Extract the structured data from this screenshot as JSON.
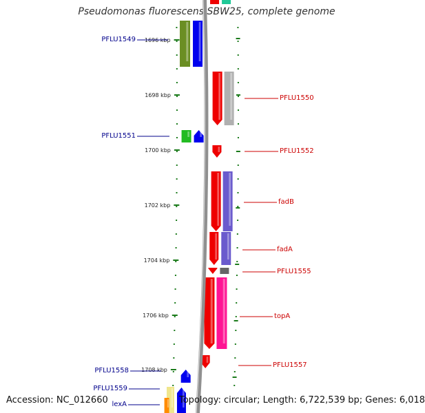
{
  "title": "Pseudomonas fluorescens SBW25, complete genome",
  "footer": {
    "accession": "Accession: NC_012660",
    "summary": "Topology: circular; Length: 6,722,539 bp; Genes: 6,018"
  },
  "ruler": {
    "unit": "kbp",
    "ticks": [
      {
        "kbp": 1696,
        "label": "1696 kbp"
      },
      {
        "kbp": 1698,
        "label": "1698 kbp"
      },
      {
        "kbp": 1700,
        "label": "1700 kbp"
      },
      {
        "kbp": 1702,
        "label": "1702 kbp"
      },
      {
        "kbp": 1704,
        "label": "1704 kbp"
      },
      {
        "kbp": 1706,
        "label": "1706 kbp"
      },
      {
        "kbp": 1708,
        "label": "1708 kbp"
      }
    ]
  },
  "colors": {
    "label_blue": "#00008b",
    "label_red": "#cc0000",
    "backbone": "#808080",
    "tick_green": "#1a7a1a",
    "gene_red": "#ee0000",
    "gene_blue": "#0000ee",
    "gene_olive": "#6b8e23",
    "gene_green": "#22bb22",
    "gene_gray": "#b0b0b0",
    "gene_dark_gray": "#666666",
    "gene_slate": "#6a5acd",
    "gene_pink": "#ff1493",
    "gene_teal": "#20c997",
    "gene_orange": "#ff8c00",
    "gene_cream": "#f0e68c"
  },
  "genes": [
    {
      "name": "PFLU1549",
      "strand": "-",
      "color": "gene_blue"
    },
    {
      "name": "PFLU1550",
      "strand": "+",
      "color": "gene_red"
    },
    {
      "name": "PFLU1551",
      "strand": "-",
      "color": "gene_blue"
    },
    {
      "name": "PFLU1552",
      "strand": "+",
      "color": "gene_red"
    },
    {
      "name": "fadB",
      "strand": "+",
      "color": "gene_red"
    },
    {
      "name": "fadA",
      "strand": "+",
      "color": "gene_red"
    },
    {
      "name": "PFLU1555",
      "strand": "+",
      "color": "gene_red"
    },
    {
      "name": "topA",
      "strand": "+",
      "color": "gene_red"
    },
    {
      "name": "PFLU1557",
      "strand": "+",
      "color": "gene_red"
    },
    {
      "name": "PFLU1558",
      "strand": "-",
      "color": "gene_blue"
    },
    {
      "name": "PFLU1559",
      "strand": "-",
      "color": "gene_blue"
    },
    {
      "name": "lexA",
      "strand": "-",
      "color": "gene_blue"
    }
  ]
}
